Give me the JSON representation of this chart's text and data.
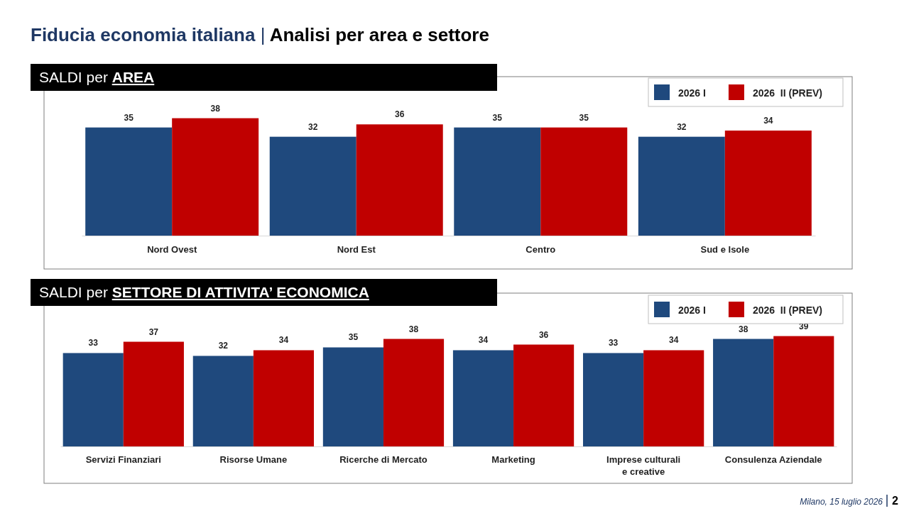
{
  "chart_data": [
    {
      "type": "bar",
      "title": "Fiducia economia italiana | Analisi per area e settore",
      "subtitle": "SALDI per AREA",
      "categories": [
        "Nord Ovest",
        "Nord Est",
        "Centro",
        "Sud e Isole"
      ],
      "series": [
        {
          "name": "2026 I",
          "color": "#1f497d",
          "values": [
            35,
            32,
            35,
            32
          ]
        },
        {
          "name": "2026  II (PREV)",
          "color": "#c00000",
          "values": [
            38,
            36,
            35,
            34
          ]
        }
      ],
      "tick_labels": "x",
      "data_labels": true,
      "legend": "top right",
      "grid": false
    },
    {
      "type": "bar",
      "title": "SALDI per SETTORE DI ATTIVITA’ ECONOMICA",
      "categories": [
        "Servizi Finanziari",
        "Risorse Umane",
        "Ricerche di Mercato",
        "Marketing",
        "Imprese culturali e creative",
        "Consulenza Aziendale"
      ],
      "series": [
        {
          "name": "2026 I",
          "color": "#1f497d",
          "values": [
            33,
            32,
            35,
            34,
            33,
            38
          ]
        },
        {
          "name": "2026  II (PREV)",
          "color": "#c00000",
          "values": [
            37,
            34,
            38,
            36,
            34,
            39
          ]
        }
      ],
      "tick_labels": "x",
      "data_labels": true,
      "legend": "top right",
      "grid": false,
      "annotations": [
        "Milano, 15 luglio 2026",
        "2"
      ]
    }
  ]
}
